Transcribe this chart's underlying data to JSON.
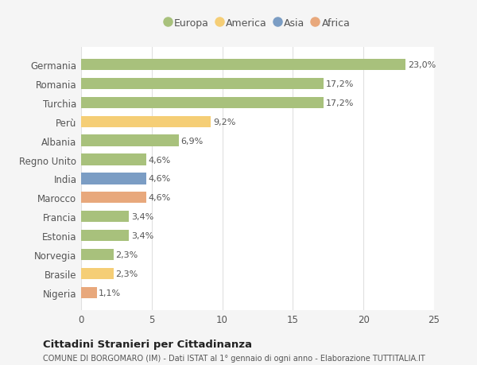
{
  "categories": [
    "Germania",
    "Romania",
    "Turchia",
    "Perù",
    "Albania",
    "Regno Unito",
    "India",
    "Marocco",
    "Francia",
    "Estonia",
    "Norvegia",
    "Brasile",
    "Nigeria"
  ],
  "values": [
    23.0,
    17.2,
    17.2,
    9.2,
    6.9,
    4.6,
    4.6,
    4.6,
    3.4,
    3.4,
    2.3,
    2.3,
    1.1
  ],
  "labels": [
    "23,0%",
    "17,2%",
    "17,2%",
    "9,2%",
    "6,9%",
    "4,6%",
    "4,6%",
    "4,6%",
    "3,4%",
    "3,4%",
    "2,3%",
    "2,3%",
    "1,1%"
  ],
  "colors": [
    "#a8c17c",
    "#a8c17c",
    "#a8c17c",
    "#f5ce76",
    "#a8c17c",
    "#a8c17c",
    "#7b9dc4",
    "#e8a87c",
    "#a8c17c",
    "#a8c17c",
    "#a8c17c",
    "#f5ce76",
    "#e8a87c"
  ],
  "continent_labels": [
    "Europa",
    "America",
    "Asia",
    "Africa"
  ],
  "continent_colors": [
    "#a8c17c",
    "#f5ce76",
    "#7b9dc4",
    "#e8a87c"
  ],
  "title": "Cittadini Stranieri per Cittadinanza",
  "subtitle": "COMUNE DI BORGOMARO (IM) - Dati ISTAT al 1° gennaio di ogni anno - Elaborazione TUTTITALIA.IT",
  "xlim": [
    0,
    25
  ],
  "xticks": [
    0,
    5,
    10,
    15,
    20,
    25
  ],
  "background_color": "#f5f5f5",
  "bar_background": "#ffffff",
  "grid_color": "#e0e0e0",
  "text_color": "#555555",
  "title_color": "#222222",
  "bar_height": 0.6,
  "label_fontsize": 8,
  "ytick_fontsize": 8.5,
  "xtick_fontsize": 8.5
}
